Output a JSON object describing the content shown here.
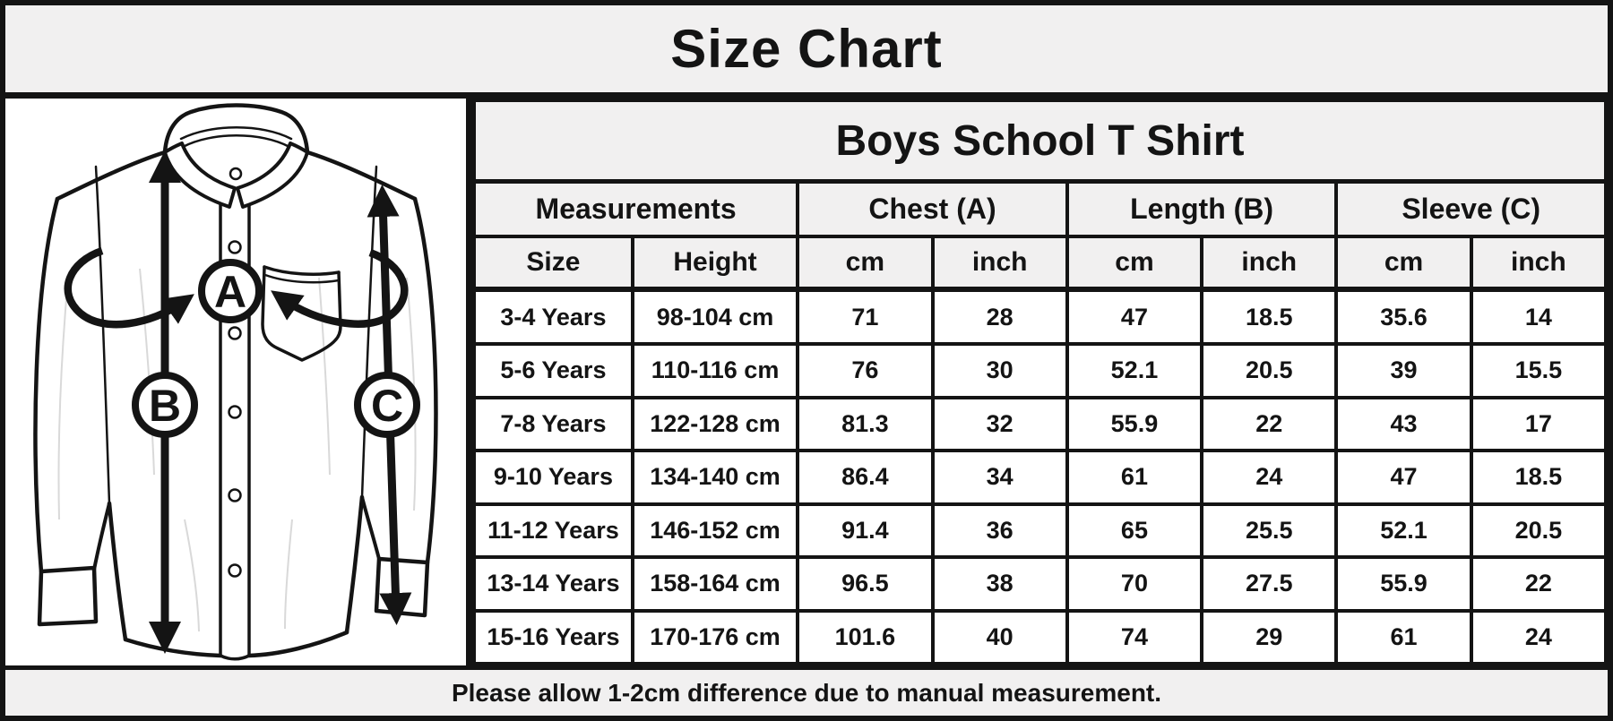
{
  "page": {
    "title": "Size Chart"
  },
  "chart_data": {
    "type": "table",
    "title": "Size Chart",
    "table_title": "Boys School T Shirt",
    "group_headers": [
      "Measurements",
      "Chest (A)",
      "Length (B)",
      "Sleeve (C)"
    ],
    "column_headers": [
      "Size",
      "Height",
      "cm",
      "inch",
      "cm",
      "inch",
      "cm",
      "inch"
    ],
    "rows": [
      [
        "3-4 Years",
        "98-104 cm",
        "71",
        "28",
        "47",
        "18.5",
        "35.6",
        "14"
      ],
      [
        "5-6 Years",
        "110-116 cm",
        "76",
        "30",
        "52.1",
        "20.5",
        "39",
        "15.5"
      ],
      [
        "7-8 Years",
        "122-128 cm",
        "81.3",
        "32",
        "55.9",
        "22",
        "43",
        "17"
      ],
      [
        "9-10 Years",
        "134-140 cm",
        "86.4",
        "34",
        "61",
        "24",
        "47",
        "18.5"
      ],
      [
        "11-12 Years",
        "146-152 cm",
        "91.4",
        "36",
        "65",
        "25.5",
        "52.1",
        "20.5"
      ],
      [
        "13-14 Years",
        "158-164 cm",
        "96.5",
        "38",
        "70",
        "27.5",
        "55.9",
        "22"
      ],
      [
        "15-16 Years",
        "170-176 cm",
        "101.6",
        "40",
        "74",
        "29",
        "61",
        "24"
      ]
    ],
    "footnote": "Please allow 1-2cm difference due to manual measurement.",
    "diagram_markers": [
      "A",
      "B",
      "C"
    ],
    "layout_hints": {
      "grid": "on",
      "header_background": "#f1f0f0"
    }
  },
  "footer": {
    "note": "Please allow 1-2cm difference due to manual measurement."
  },
  "colors": {
    "header_bg": "#f1f0f0",
    "cell_bg": "#ffffff",
    "line": "#141414",
    "text": "#141414"
  }
}
